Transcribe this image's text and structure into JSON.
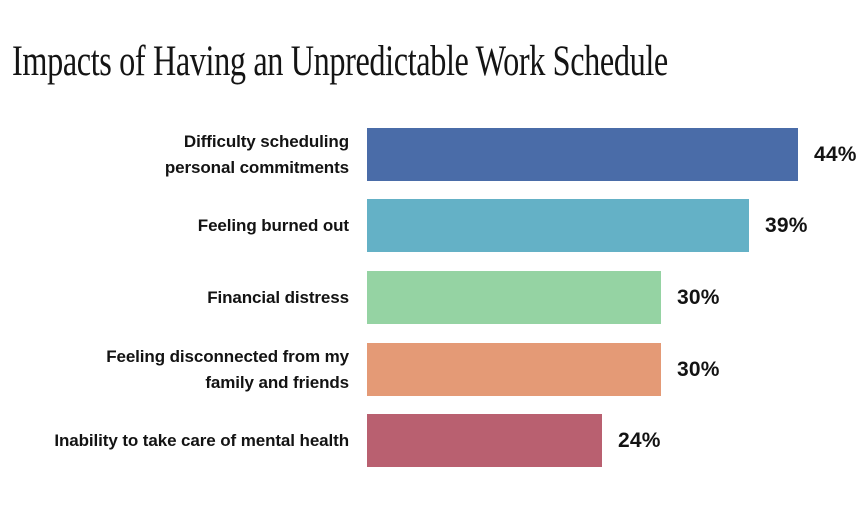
{
  "chart_data": {
    "type": "bar",
    "orientation": "horizontal",
    "title": "Impacts of Having an Unpredictable Work Schedule",
    "categories": [
      "Difficulty scheduling\npersonal commitments",
      "Feeling burned out",
      "Financial distress",
      "Feeling disconnected from my\nfamily and friends",
      "Inability to take care of mental health"
    ],
    "values": [
      44,
      39,
      30,
      30,
      24
    ],
    "value_labels": [
      "44%",
      "39%",
      "30%",
      "30%",
      "24%"
    ],
    "bar_colors": [
      "#4A6CA8",
      "#64B1C6",
      "#95D3A3",
      "#E49A76",
      "#B96070"
    ],
    "value_label_position": "outside-end",
    "axis": "none",
    "grid": false,
    "legend": "none",
    "background_color": "#FFFFFF",
    "text_color": "#131313",
    "xlim": [
      0,
      50
    ]
  }
}
